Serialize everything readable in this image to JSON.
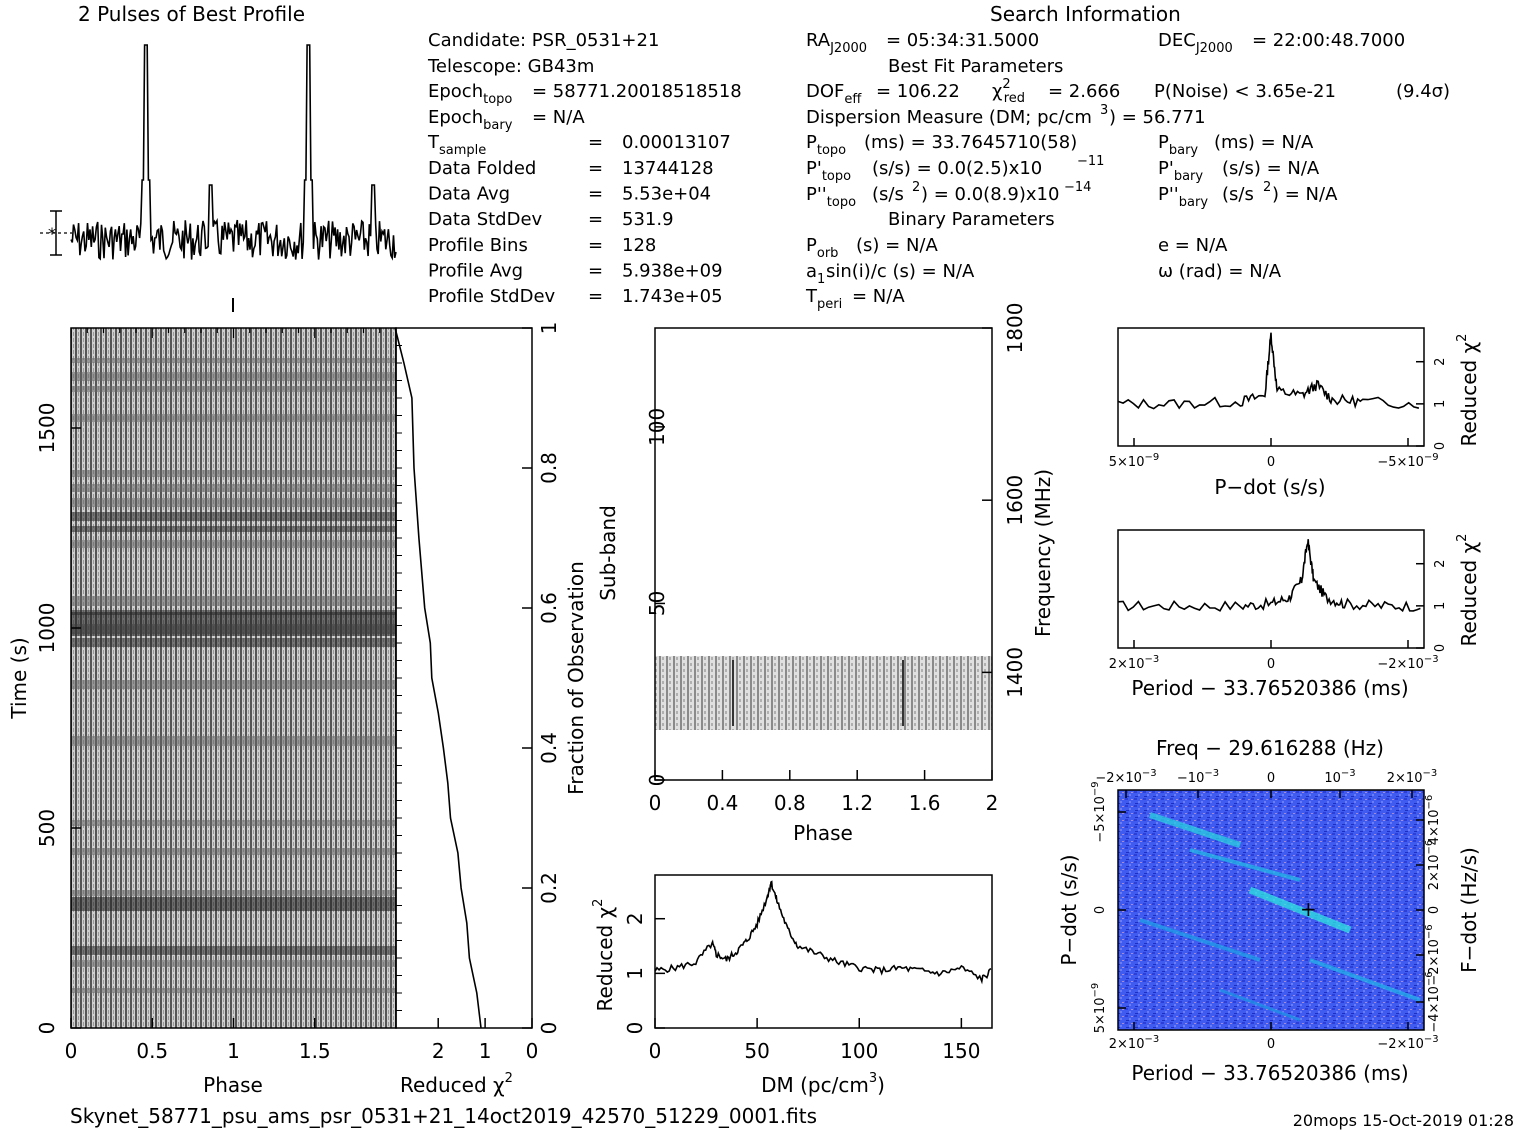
{
  "header": {
    "profile_title": "2 Pulses of Best Profile",
    "search_title": "Search Information",
    "best_fit_title": "Best Fit Parameters",
    "binary_title": "Binary Parameters"
  },
  "info": {
    "candidate": "Candidate:   PSR_0531+21",
    "telescope": "Telescope:   GB43m",
    "epoch_topo": "= 58771.20018518518",
    "epoch_bary": "= N/A",
    "rows": [
      {
        "label": "Data Folded",
        "value": "13744128"
      },
      {
        "label": "Data Avg",
        "value": "5.53e+04"
      },
      {
        "label": "Data StdDev",
        "value": "531.9"
      },
      {
        "label": "Profile Bins",
        "value": "128"
      },
      {
        "label": "Profile Avg",
        "value": "5.938e+09"
      },
      {
        "label": "Profile StdDev",
        "value": "1.743e+05"
      }
    ],
    "t_sample_value": "0.00013107",
    "ra": "= 05:34:31.5000",
    "dec": "= 22:00:48.7000",
    "dof_value": "= 106.22",
    "chi_red_value": "= 2.666",
    "p_noise": "P(Noise) < 3.65e-21",
    "sigma": "(9.4σ)",
    "dm_line": "Dispersion Measure (DM; pc/cm",
    "dm_value": ") = 56.771",
    "p_topo": "(ms) =  33.7645710(58)",
    "p_bary": "(ms) = N/A",
    "pd_topo": "(s/s) = 0.0(2.5)x10",
    "pd_topo_exp": "−11",
    "pd_bary": "(s/s) = N/A",
    "pdd_topo": "(s/s",
    "pdd_topo_val": ") = 0.0(8.9)x10",
    "pdd_topo_exp": "−14",
    "pdd_bary": ") = N/A",
    "p_orb": "(s) = N/A",
    "a1": "sin(i)/c (s) = N/A",
    "t_peri": "= N/A",
    "ecc": "e = N/A",
    "omega": "ω (rad) = N/A"
  },
  "footer": {
    "filename": "Skynet_58771_psu_ams_psr_0531+21_14oct2019_42570_51229_0001.fits",
    "stamp": "20mops 15-Oct-2019 01:28"
  },
  "chart_data": [
    {
      "type": "line",
      "name": "pulse-profile",
      "title": "2 Pulses of Best Profile",
      "x_range": [
        0,
        2
      ],
      "peaks_phase": [
        0.46,
        1.46
      ],
      "secondary_peaks_phase": [
        0.86,
        1.86
      ]
    },
    {
      "type": "heatmap",
      "name": "time-phase",
      "xlabel": "Phase",
      "ylabel": "Time (s)",
      "x_ticks": [
        "0",
        "0.5",
        "1",
        "1.5"
      ],
      "y_ticks": [
        "0",
        "500",
        "1000",
        "1500"
      ],
      "xlim": [
        0,
        2
      ],
      "ylim": [
        0,
        1750
      ]
    },
    {
      "type": "line",
      "name": "fraction-chi2",
      "xlabel": "Reduced χ",
      "ylabel": "Fraction of Observation",
      "x_ticks": [
        "2",
        "1",
        "0"
      ],
      "y_ticks": [
        "0",
        "0.2",
        "0.4",
        "0.6",
        "0.8",
        "1"
      ],
      "x": [
        1.1,
        1.2,
        1.3,
        1.4,
        1.5,
        1.6,
        1.7,
        1.8,
        1.9,
        2.0,
        2.1,
        2.15,
        2.3,
        2.4,
        2.5,
        2.6,
        2.7,
        2.9
      ],
      "y": [
        0.0,
        0.05,
        0.1,
        0.15,
        0.2,
        0.25,
        0.3,
        0.35,
        0.4,
        0.45,
        0.5,
        0.55,
        0.6,
        0.7,
        0.8,
        0.9,
        0.95,
        1.0
      ]
    },
    {
      "type": "heatmap",
      "name": "subband-phase",
      "xlabel": "Phase",
      "ylabel": "Sub-band",
      "ylabel_right": "Frequency (MHz)",
      "x_ticks": [
        "0",
        "0.4",
        "0.8",
        "1.2",
        "1.6",
        "2"
      ],
      "y_ticks": [
        "0",
        "50",
        "100"
      ],
      "y_right_ticks": [
        "1400",
        "1600",
        "1800"
      ],
      "xlim": [
        0,
        2
      ],
      "ylim": [
        0,
        128
      ],
      "band_subbands": [
        14,
        35
      ]
    },
    {
      "type": "line",
      "name": "dm-curve",
      "xlabel": "DM (pc/cm",
      "xlabel_sup": "3",
      "ylabel": "Reduced χ",
      "x_ticks": [
        "0",
        "50",
        "100",
        "150"
      ],
      "y_ticks": [
        "0",
        "1",
        "2"
      ],
      "xlim": [
        0,
        165
      ],
      "ylim": [
        0,
        2.8
      ],
      "x": [
        0,
        10,
        20,
        28,
        30,
        35,
        40,
        45,
        50,
        55,
        56.8,
        60,
        65,
        70,
        80,
        90,
        100,
        110,
        120,
        130,
        140,
        150,
        160,
        165
      ],
      "y": [
        1.05,
        1.1,
        1.2,
        1.55,
        1.35,
        1.25,
        1.4,
        1.6,
        1.9,
        2.4,
        2.67,
        2.3,
        1.8,
        1.5,
        1.35,
        1.2,
        1.1,
        1.05,
        1.1,
        1.05,
        1.0,
        1.1,
        0.9,
        1.05
      ]
    },
    {
      "type": "line",
      "name": "pdot-curve",
      "xlabel": "P−dot (s/s)",
      "ylabel": "Reduced χ",
      "x_ticks": [
        "5×10",
        "0",
        "−5×10"
      ],
      "x_tick_exp": "−9",
      "y_ticks": [
        "0",
        "1",
        "2"
      ],
      "xlim": [
        5e-09,
        -5e-09
      ],
      "ylim": [
        0,
        2.8
      ],
      "x": [
        5e-09,
        3e-09,
        1e-09,
        2e-10,
        0,
        -2e-10,
        -1e-09,
        -1.5e-09,
        -2e-09,
        -3e-09,
        -5e-09
      ],
      "y": [
        1.0,
        1.0,
        1.05,
        1.2,
        2.65,
        1.3,
        1.2,
        1.45,
        1.1,
        1.05,
        1.0
      ]
    },
    {
      "type": "line",
      "name": "period-curve",
      "xlabel": "Period − 33.76520386 (ms)",
      "ylabel": "Reduced χ",
      "x_ticks": [
        "2×10",
        "0",
        "−2×10"
      ],
      "x_tick_exp": "−3",
      "y_ticks": [
        "0",
        "1",
        "2"
      ],
      "xlim": [
        0.0025,
        -0.0025
      ],
      "ylim": [
        0,
        2.8
      ],
      "x": [
        0.0025,
        0.0015,
        0.0005,
        0.0,
        -0.0003,
        -0.0005,
        -0.0006,
        -0.0007,
        -0.0009,
        -0.0012,
        -0.0018,
        -0.0025
      ],
      "y": [
        1.0,
        1.0,
        1.0,
        1.05,
        1.2,
        1.6,
        2.55,
        1.6,
        1.2,
        1.05,
        1.0,
        1.0
      ]
    },
    {
      "type": "heatmap",
      "name": "period-pdot",
      "title": "Freq − 29.616288 (Hz)",
      "xlabel": "Period − 33.76520386 (ms)",
      "ylabel": "P−dot (s/s)",
      "ylabel_right": "F−dot (Hz/s)",
      "top_ticks": [
        "−2×10",
        "−10",
        "0",
        "10",
        "2×10"
      ],
      "top_tick_exp": "−3",
      "bottom_ticks": [
        "2×10",
        "0",
        "−2×10"
      ],
      "bottom_tick_exp": "−3",
      "left_ticks": [
        "−5×10",
        "0",
        "5×10"
      ],
      "left_tick_exp": "−9",
      "right_ticks": [
        "4×10",
        "2×10",
        "0",
        "−2×10",
        "−4×10"
      ],
      "right_tick_exp": "−6",
      "best_period_offset": -0.0006,
      "best_pdot": 0.0
    }
  ]
}
